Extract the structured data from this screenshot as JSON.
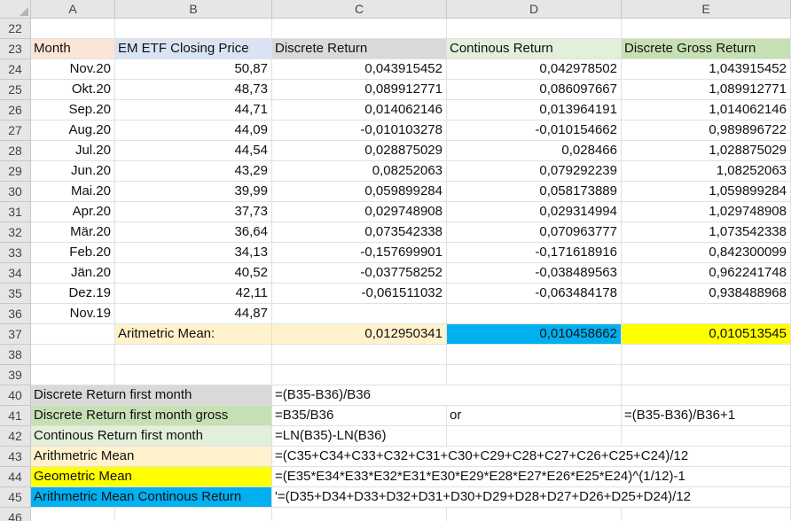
{
  "columns": [
    "A",
    "B",
    "C",
    "D",
    "E"
  ],
  "header_row": {
    "row": "23",
    "month": "Month",
    "price": "EM ETF Closing Price",
    "discrete": "Discrete Return",
    "continous": "Continous Return",
    "gross": "Discrete Gross Return"
  },
  "empty_rows_top": [
    "22"
  ],
  "data_rows": [
    {
      "row": "24",
      "month": "Nov.20",
      "price": "50,87",
      "discrete": "0,043915452",
      "continous": "0,042978502",
      "gross": "1,043915452"
    },
    {
      "row": "25",
      "month": "Okt.20",
      "price": "48,73",
      "discrete": "0,089912771",
      "continous": "0,086097667",
      "gross": "1,089912771"
    },
    {
      "row": "26",
      "month": "Sep.20",
      "price": "44,71",
      "discrete": "0,014062146",
      "continous": "0,013964191",
      "gross": "1,014062146"
    },
    {
      "row": "27",
      "month": "Aug.20",
      "price": "44,09",
      "discrete": "-0,010103278",
      "continous": "-0,010154662",
      "gross": "0,989896722"
    },
    {
      "row": "28",
      "month": "Jul.20",
      "price": "44,54",
      "discrete": "0,028875029",
      "continous": "0,028466",
      "gross": "1,028875029"
    },
    {
      "row": "29",
      "month": "Jun.20",
      "price": "43,29",
      "discrete": "0,08252063",
      "continous": "0,079292239",
      "gross": "1,08252063"
    },
    {
      "row": "30",
      "month": "Mai.20",
      "price": "39,99",
      "discrete": "0,059899284",
      "continous": "0,058173889",
      "gross": "1,059899284"
    },
    {
      "row": "31",
      "month": "Apr.20",
      "price": "37,73",
      "discrete": "0,029748908",
      "continous": "0,029314994",
      "gross": "1,029748908"
    },
    {
      "row": "32",
      "month": "Mär.20",
      "price": "36,64",
      "discrete": "0,073542338",
      "continous": "0,070963777",
      "gross": "1,073542338"
    },
    {
      "row": "33",
      "month": "Feb.20",
      "price": "34,13",
      "discrete": "-0,157699901",
      "continous": "-0,171618916",
      "gross": "0,842300099"
    },
    {
      "row": "34",
      "month": "Jän.20",
      "price": "40,52",
      "discrete": "-0,037758252",
      "continous": "-0,038489563",
      "gross": "0,962241748"
    },
    {
      "row": "35",
      "month": "Dez.19",
      "price": "42,11",
      "discrete": "-0,061511032",
      "continous": "-0,063484178",
      "gross": "0,938488968"
    },
    {
      "row": "36",
      "month": "Nov.19",
      "price": "44,87",
      "discrete": "",
      "continous": "",
      "gross": ""
    }
  ],
  "mean_row": {
    "row": "37",
    "label": "Aritmetric Mean:",
    "discrete": "0,012950341",
    "continous": "0,010458662",
    "gross": "0,010513545"
  },
  "empty_rows_mid": [
    "38",
    "39"
  ],
  "notes": [
    {
      "row": "40",
      "label": "Discrete Return first month",
      "formula": "=(B35-B36)/B36",
      "extra_d": "",
      "extra_e": ""
    },
    {
      "row": "41",
      "label": "Discrete Return first month gross",
      "formula": "=B35/B36",
      "extra_d": "or",
      "extra_e": "=(B35-B36)/B36+1"
    },
    {
      "row": "42",
      "label": "Continous Return first month",
      "formula": "=LN(B35)-LN(B36)",
      "extra_d": "",
      "extra_e": ""
    },
    {
      "row": "43",
      "label": "Arithmetric Mean",
      "formula": "=(C35+C34+C33+C32+C31+C30+C29+C28+C27+C26+C25+C24)/12",
      "extra_d": "",
      "extra_e": ""
    },
    {
      "row": "44",
      "label": "Geometric Mean",
      "formula": "=(E35*E34*E33*E32*E31*E30*E29*E28*E27*E26*E25*E24)^(1/12)-1",
      "extra_d": "",
      "extra_e": ""
    },
    {
      "row": "45",
      "label": "Arithmetric Mean Continous Return",
      "formula": "'=(D35+D34+D33+D32+D31+D30+D29+D28+D27+D26+D25+D24)/12",
      "extra_d": "",
      "extra_e": ""
    }
  ],
  "last_row": "46",
  "colors": {
    "month_header": "#fbe5d6",
    "price_header": "#dae3f3",
    "discrete_header": "#d9d9d9",
    "continous_header": "#e2efda",
    "gross_header": "#c6e0b4",
    "mean_label": "#fff2cc",
    "continous_mean": "#00b0f0",
    "gross_mean": "#ffff00"
  }
}
